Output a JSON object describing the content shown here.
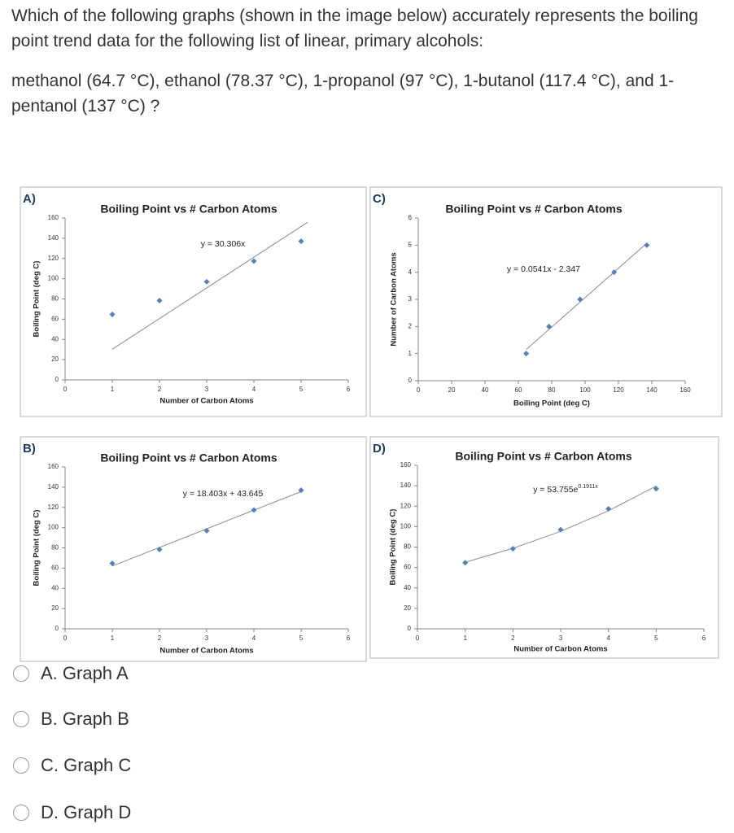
{
  "question": {
    "prompt": "Which of the following graphs (shown in the image below) accurately represents the boiling point trend data for the following list of linear, primary alcohols:",
    "data_line": "methanol (64.7 °C), ethanol (78.37 °C), 1-propanol (97 °C), 1-butanol (117.4 °C), and 1-pentanol (137 °C) ?"
  },
  "options": [
    "A. Graph A",
    "B. Graph B",
    "C. Graph C",
    "D. Graph D"
  ],
  "chart_data": [
    {
      "type": "scatter",
      "label": "A)",
      "title": "Boiling Point vs # Carbon Atoms",
      "x_label": "Number of Carbon Atoms",
      "y_label": "Boiling Point (deg C)",
      "x": [
        1,
        2,
        3,
        4,
        5
      ],
      "values": [
        64.7,
        78.37,
        97,
        117.4,
        137
      ],
      "color": "#4f81bd",
      "xlim": [
        0,
        6
      ],
      "xticks": [
        0,
        1,
        2,
        3,
        4,
        5,
        6
      ],
      "ylim": [
        0,
        160
      ],
      "yticks": [
        0,
        20,
        40,
        60,
        80,
        100,
        120,
        140,
        160
      ],
      "trendline": {
        "x": [
          1,
          5.14
        ],
        "values": [
          30.3,
          155.8
        ],
        "color": "#8c8c8c",
        "equation": "y = 30.306x"
      }
    },
    {
      "type": "scatter",
      "label": "C)",
      "title": "Boiling Point vs # Carbon Atoms",
      "x_label": "Boiling Point (deg C)",
      "y_label": "Number of Carbon Atoms",
      "x": [
        64.7,
        78.37,
        97,
        117.4,
        137
      ],
      "values": [
        1,
        2,
        3,
        4,
        5
      ],
      "color": "#4f81bd",
      "xlim": [
        0,
        160
      ],
      "xticks": [
        0,
        20,
        40,
        60,
        80,
        100,
        120,
        140,
        160
      ],
      "ylim": [
        0,
        6
      ],
      "yticks": [
        0,
        1,
        2,
        3,
        4,
        5,
        6
      ],
      "trendline": {
        "x": [
          64.7,
          137
        ],
        "values": [
          1.15,
          5.07
        ],
        "color": "#8c8c8c",
        "equation": "y = 0.0541x - 2.347"
      }
    },
    {
      "type": "scatter",
      "label": "B)",
      "title": "Boiling Point vs # Carbon Atoms",
      "x_label": "Number of Carbon Atoms",
      "y_label": "Boiling Point (deg C)",
      "x": [
        1,
        2,
        3,
        4,
        5
      ],
      "values": [
        64.7,
        78.37,
        97,
        117.4,
        137
      ],
      "color": "#4f81bd",
      "xlim": [
        0,
        6
      ],
      "xticks": [
        0,
        1,
        2,
        3,
        4,
        5,
        6
      ],
      "ylim": [
        0,
        160
      ],
      "yticks": [
        0,
        20,
        40,
        60,
        80,
        100,
        120,
        140,
        160
      ],
      "trendline": {
        "x": [
          1,
          5
        ],
        "values": [
          62.05,
          135.66
        ],
        "color": "#8c8c8c",
        "equation": "y = 18.403x + 43.645"
      }
    },
    {
      "type": "scatter",
      "label": "D)",
      "title": "Boiling Point vs # Carbon Atoms",
      "x_label": "Number of Carbon Atoms",
      "y_label": "Boiling Point (deg C)",
      "x": [
        1,
        2,
        3,
        4,
        5
      ],
      "values": [
        64.7,
        78.37,
        97,
        117.4,
        137
      ],
      "color": "#4f81bd",
      "xlim": [
        0,
        6
      ],
      "xticks": [
        0,
        1,
        2,
        3,
        4,
        5,
        6
      ],
      "ylim": [
        0,
        160
      ],
      "yticks": [
        0,
        20,
        40,
        60,
        80,
        100,
        120,
        140,
        160
      ],
      "trendline": {
        "x": [
          1,
          2,
          3,
          4,
          5
        ],
        "values": [
          65.07,
          78.78,
          95.37,
          115.45,
          139.76
        ],
        "color": "#8c8c8c",
        "equation": "y = 53.755e",
        "equation_exponent": "0.1911x"
      }
    }
  ]
}
